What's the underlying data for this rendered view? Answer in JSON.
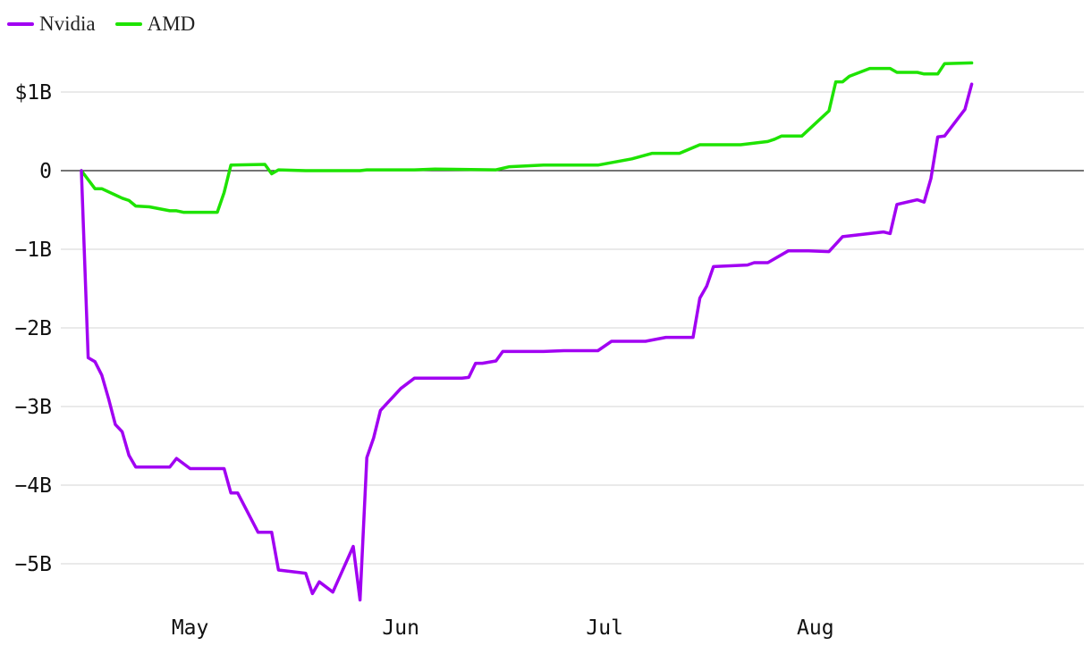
{
  "chart_data": {
    "type": "line",
    "title": "",
    "xlabel": "",
    "ylabel": "",
    "legend_position": "top-left",
    "grid": true,
    "ylim": [
      -5.6,
      1.5
    ],
    "y_ticks": [
      {
        "value": 1,
        "label": "$1B"
      },
      {
        "value": 0,
        "label": "0"
      },
      {
        "value": -1,
        "label": "−1B"
      },
      {
        "value": -2,
        "label": "−2B"
      },
      {
        "value": -3,
        "label": "−3B"
      },
      {
        "value": -4,
        "label": "−4B"
      },
      {
        "value": -5,
        "label": "−5B"
      }
    ],
    "x_ticks": [
      {
        "day": 30,
        "label": "May"
      },
      {
        "day": 61,
        "label": "Jun"
      },
      {
        "day": 91,
        "label": "Jul"
      },
      {
        "day": 122,
        "label": "Aug"
      }
    ],
    "series": [
      {
        "name": "Nvidia",
        "color": "#a100f2",
        "points": [
          [
            14,
            0
          ],
          [
            15,
            -2.38
          ],
          [
            16,
            -2.43
          ],
          [
            17,
            -2.6
          ],
          [
            18,
            -2.9
          ],
          [
            19,
            -3.23
          ],
          [
            20,
            -3.32
          ],
          [
            21,
            -3.62
          ],
          [
            22,
            -3.77
          ],
          [
            25,
            -3.77
          ],
          [
            27,
            -3.77
          ],
          [
            28,
            -3.66
          ],
          [
            30,
            -3.79
          ],
          [
            35,
            -3.79
          ],
          [
            36,
            -4.1
          ],
          [
            37,
            -4.1
          ],
          [
            40,
            -4.6
          ],
          [
            42,
            -4.6
          ],
          [
            43,
            -5.08
          ],
          [
            47,
            -5.12
          ],
          [
            48,
            -5.38
          ],
          [
            49,
            -5.23
          ],
          [
            51,
            -5.36
          ],
          [
            54,
            -4.78
          ],
          [
            55,
            -5.46
          ],
          [
            56,
            -3.65
          ],
          [
            57,
            -3.4
          ],
          [
            58,
            -3.05
          ],
          [
            61,
            -2.77
          ],
          [
            63,
            -2.64
          ],
          [
            70,
            -2.64
          ],
          [
            71,
            -2.63
          ],
          [
            72,
            -2.45
          ],
          [
            73,
            -2.45
          ],
          [
            75,
            -2.42
          ],
          [
            76,
            -2.3
          ],
          [
            82,
            -2.3
          ],
          [
            85,
            -2.29
          ],
          [
            90,
            -2.29
          ],
          [
            92,
            -2.17
          ],
          [
            97,
            -2.17
          ],
          [
            100,
            -2.12
          ],
          [
            104,
            -2.12
          ],
          [
            105,
            -1.62
          ],
          [
            106,
            -1.47
          ],
          [
            107,
            -1.22
          ],
          [
            112,
            -1.2
          ],
          [
            113,
            -1.17
          ],
          [
            115,
            -1.17
          ],
          [
            118,
            -1.02
          ],
          [
            121,
            -1.02
          ],
          [
            124,
            -1.03
          ],
          [
            126,
            -0.84
          ],
          [
            127,
            -0.83
          ],
          [
            132,
            -0.78
          ],
          [
            133,
            -0.8
          ],
          [
            134,
            -0.43
          ],
          [
            137,
            -0.37
          ],
          [
            138,
            -0.4
          ],
          [
            139,
            -0.1
          ],
          [
            140,
            0.43
          ],
          [
            141,
            0.44
          ],
          [
            144,
            0.78
          ],
          [
            145,
            1.1
          ]
        ]
      },
      {
        "name": "AMD",
        "color": "#1ee300",
        "points": [
          [
            14,
            0
          ],
          [
            16,
            -0.23
          ],
          [
            17,
            -0.23
          ],
          [
            20,
            -0.35
          ],
          [
            21,
            -0.38
          ],
          [
            22,
            -0.45
          ],
          [
            24,
            -0.46
          ],
          [
            27,
            -0.51
          ],
          [
            28,
            -0.51
          ],
          [
            29,
            -0.53
          ],
          [
            34,
            -0.53
          ],
          [
            35,
            -0.28
          ],
          [
            36,
            0.07
          ],
          [
            41,
            0.08
          ],
          [
            42,
            -0.04
          ],
          [
            43,
            0.01
          ],
          [
            47,
            0.0
          ],
          [
            52,
            0.0
          ],
          [
            55,
            0.0
          ],
          [
            56,
            0.01
          ],
          [
            63,
            0.01
          ],
          [
            66,
            0.02
          ],
          [
            75,
            0.01
          ],
          [
            77,
            0.05
          ],
          [
            82,
            0.07
          ],
          [
            88,
            0.07
          ],
          [
            90,
            0.07
          ],
          [
            95,
            0.15
          ],
          [
            98,
            0.22
          ],
          [
            102,
            0.22
          ],
          [
            105,
            0.33
          ],
          [
            111,
            0.33
          ],
          [
            115,
            0.37
          ],
          [
            116,
            0.4
          ],
          [
            117,
            0.44
          ],
          [
            120,
            0.44
          ],
          [
            124,
            0.76
          ],
          [
            125,
            1.13
          ],
          [
            126,
            1.13
          ],
          [
            127,
            1.2
          ],
          [
            130,
            1.3
          ],
          [
            133,
            1.3
          ],
          [
            134,
            1.25
          ],
          [
            137,
            1.25
          ],
          [
            138,
            1.23
          ],
          [
            140,
            1.23
          ],
          [
            141,
            1.36
          ],
          [
            145,
            1.37
          ]
        ]
      }
    ]
  }
}
